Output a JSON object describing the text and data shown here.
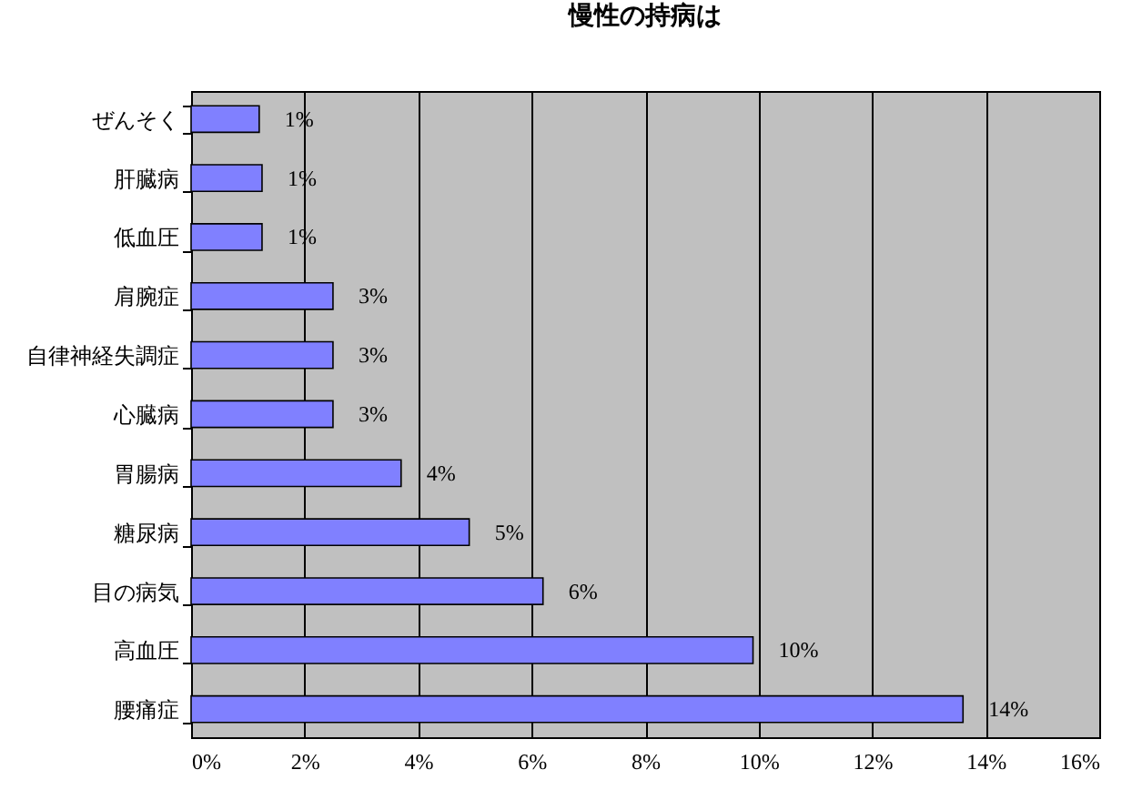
{
  "chart_data": {
    "type": "bar",
    "orientation": "horizontal",
    "title": "慢性の持病は",
    "categories": [
      "ぜんそく",
      "肝臓病",
      "低血圧",
      "肩腕症",
      "自律神経失調症",
      "心臓病",
      "胃腸病",
      "糖尿病",
      "目の病気",
      "高血圧",
      "腰痛症"
    ],
    "values": [
      1.2,
      1.25,
      1.25,
      2.5,
      2.5,
      2.5,
      3.7,
      4.9,
      6.2,
      9.9,
      13.6
    ],
    "value_labels": [
      "1%",
      "1%",
      "1%",
      "3%",
      "3%",
      "3%",
      "4%",
      "5%",
      "6%",
      "10%",
      "14%"
    ],
    "color": "#8080ff",
    "xlim": [
      0,
      16
    ],
    "xticks": [
      {
        "value": 0,
        "label": "0%"
      },
      {
        "value": 2,
        "label": "2%"
      },
      {
        "value": 4,
        "label": "4%"
      },
      {
        "value": 6,
        "label": "6%"
      },
      {
        "value": 8,
        "label": "8%"
      },
      {
        "value": 10,
        "label": "10%"
      },
      {
        "value": 12,
        "label": "12%"
      },
      {
        "value": 14,
        "label": "14%"
      },
      {
        "value": 16,
        "label": "16%"
      }
    ],
    "grid": "x"
  }
}
